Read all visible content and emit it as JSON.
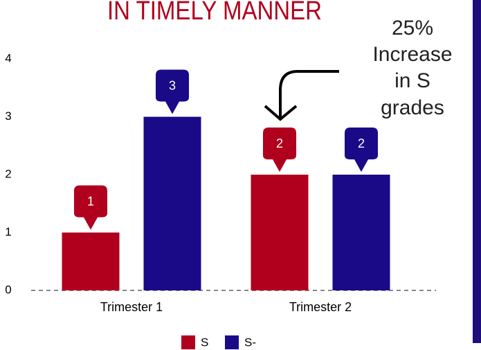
{
  "chart_data": {
    "type": "bar",
    "title": "IN TIMELY MANNER",
    "annotation": [
      "25%",
      "Increase",
      "in S",
      "grades"
    ],
    "categories": [
      "Trimester 1",
      "Trimester 2"
    ],
    "series": [
      {
        "name": "S",
        "color": "#b0001e",
        "values": [
          1,
          2
        ]
      },
      {
        "name": "S-",
        "color": "#1a0a87",
        "values": [
          3,
          2
        ]
      }
    ],
    "ylim": [
      0,
      4
    ],
    "yticks": [
      0,
      1,
      2,
      3,
      4
    ],
    "legend": "bottom"
  }
}
